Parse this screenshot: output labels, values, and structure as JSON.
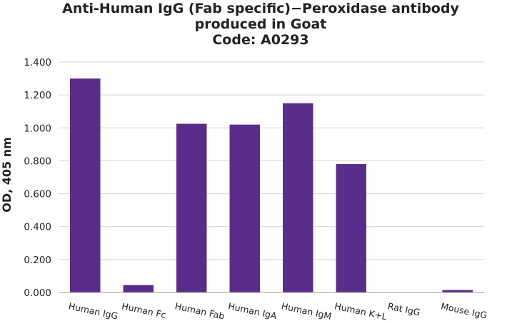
{
  "chart_data": {
    "type": "bar",
    "title_lines": [
      "Anti-Human IgG (Fab specific)−Peroxidase antibody",
      "produced in Goat",
      "Code: A0293"
    ],
    "xlabel": "",
    "ylabel": "OD, 405 nm",
    "ylim": [
      0,
      1.4
    ],
    "y_ticks": [
      "0.000",
      "0.200",
      "0.400",
      "0.600",
      "0.800",
      "1.000",
      "1.200",
      "1.400"
    ],
    "categories": [
      "Human IgG",
      "Human Fc",
      "Human Fab",
      "Human IgA",
      "Human IgM",
      "Human K+L",
      "Rat IgG",
      "Mouse IgG"
    ],
    "values": [
      1.3,
      0.045,
      1.025,
      1.02,
      1.15,
      0.78,
      0.0,
      0.015
    ],
    "bar_color": "#5b2d8a",
    "grid": true,
    "legend": "none"
  }
}
